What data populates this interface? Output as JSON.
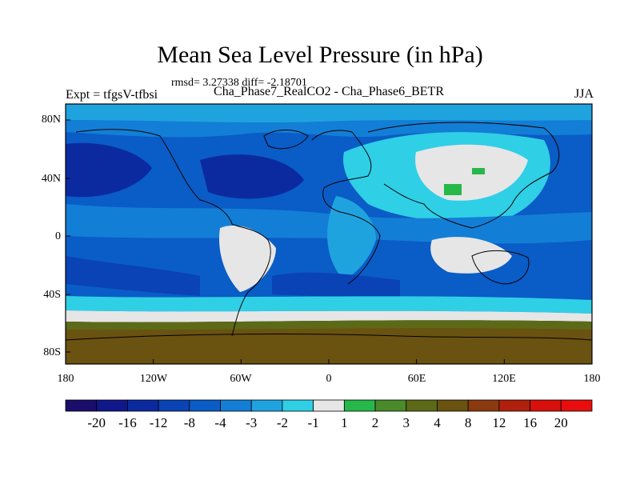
{
  "title": "Mean Sea Level Pressure (in hPa)",
  "stats": "rmsd= 3.27338 diff= -2.18701",
  "subtitle": "Cha_Phase7_RealCO2 - Cha_Phase6_BETR",
  "left_label": "Expt = tfgsV-tfbsi",
  "right_label": "JJA",
  "y_ticks": [
    "80N",
    "40N",
    "0",
    "40S",
    "80S"
  ],
  "x_ticks": [
    "180",
    "120W",
    "60W",
    "0",
    "60E",
    "120E",
    "180"
  ],
  "colorbar": {
    "labels": [
      "-20",
      "-16",
      "-12",
      "-8",
      "-4",
      "-3",
      "-2",
      "-1",
      "1",
      "2",
      "3",
      "4",
      "8",
      "12",
      "16",
      "20"
    ],
    "colors": [
      "#1a0d6b",
      "#10178a",
      "#0c2aa0",
      "#0a43b5",
      "#0a5cc6",
      "#137ed6",
      "#1fa3df",
      "#2fcfe6",
      "#e6e6e6",
      "#27b84a",
      "#4a8a2a",
      "#5c6a18",
      "#6a5210",
      "#8a3a0e",
      "#b0200c",
      "#d8100c",
      "#e80e0e"
    ]
  },
  "chart_data": {
    "type": "heatmap",
    "title": "Mean Sea Level Pressure (in hPa)",
    "variable": "Mean Sea Level Pressure difference",
    "units": "hPa",
    "season": "JJA",
    "rmsd": 3.27338,
    "diff": -2.18701,
    "x_axis": {
      "ticks": [
        "180",
        "120W",
        "60W",
        "0",
        "60E",
        "120E",
        "180"
      ],
      "range": [
        -180,
        180
      ]
    },
    "y_axis": {
      "ticks": [
        "80N",
        "40N",
        "0",
        "40S",
        "80S"
      ],
      "range": [
        -90,
        90
      ]
    },
    "levels": [
      -20,
      -16,
      -12,
      -8,
      -4,
      -3,
      -2,
      -1,
      1,
      2,
      3,
      4,
      8,
      12,
      16,
      20
    ]
  }
}
